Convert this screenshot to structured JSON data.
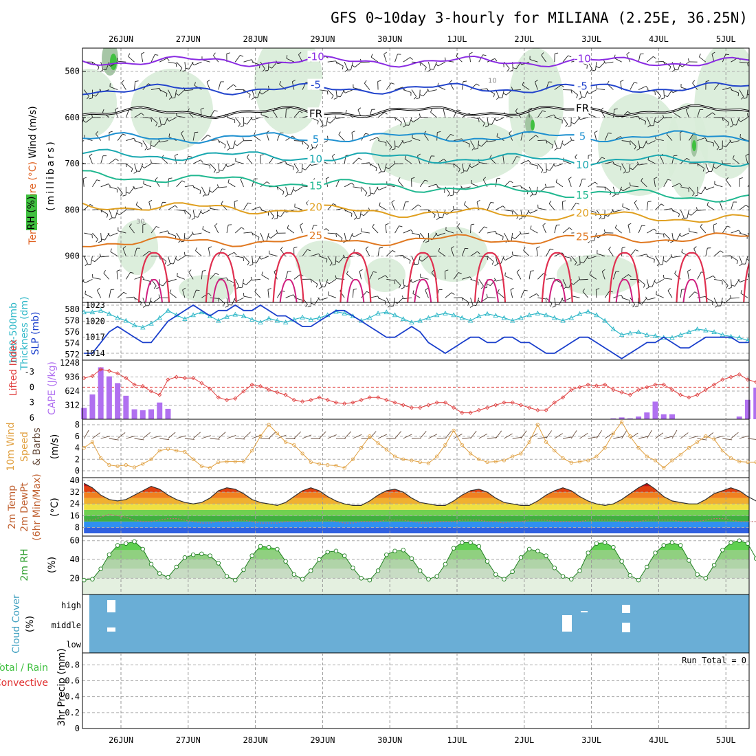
{
  "title": "GFS 0~10day 3-hourly for MILIANA (2.25E, 36.25N)",
  "x_axis": {
    "labels": [
      "26JUN",
      "27JUN",
      "28JUN",
      "29JUN",
      "30JUN",
      "1JUL",
      "2JUL",
      "3JUL",
      "4JUL",
      "5JUL"
    ]
  },
  "chart_data": [
    {
      "id": "upper-air",
      "type": "heatmap",
      "ylabels": [
        "Wind (m/s)",
        "Temperature (°C)",
        "RH (%)",
        "(millibars)"
      ],
      "yticks": [
        500,
        600,
        700,
        800,
        900
      ],
      "ylim": [
        1000,
        450
      ],
      "isotherms": [
        {
          "value": -10,
          "label": "-10",
          "color": "#8a2be2",
          "p_start": 478,
          "p_end": 480
        },
        {
          "value": -5,
          "label": "-5",
          "color": "#2244cc",
          "p_start": 540,
          "p_end": 535
        },
        {
          "value": 0,
          "label": "FR",
          "color": "#000000",
          "p_start": 590,
          "p_end": 585
        },
        {
          "value": 5,
          "label": "5",
          "color": "#1e90d0",
          "p_start": 645,
          "p_end": 640
        },
        {
          "value": 10,
          "label": "10",
          "color": "#1aa8b0",
          "p_start": 680,
          "p_end": 695
        },
        {
          "value": 15,
          "label": "15",
          "color": "#20b890",
          "p_start": 725,
          "p_end": 775
        },
        {
          "value": 20,
          "label": "20",
          "color": "#e0a020",
          "p_start": 790,
          "p_end": 820
        },
        {
          "value": 25,
          "label": "25",
          "color": "#e07820",
          "p_start": 870,
          "p_end": 860
        }
      ],
      "rh_labels": [
        "30",
        "10"
      ]
    },
    {
      "id": "slp-thickness",
      "type": "line",
      "ylabels": [
        "1000-500mb",
        "Thickness (dm)",
        "SLP (mb)"
      ],
      "left_ticks": [
        572,
        574,
        576,
        578,
        580
      ],
      "right_ticks": [
        1014,
        1017,
        1020,
        1023
      ],
      "series": [
        {
          "name": "SLP (mb)",
          "color": "#1a3fcc",
          "values": [
            1014,
            1014,
            1016,
            1018,
            1019,
            1018,
            1017,
            1016,
            1016,
            1018,
            1020,
            1021,
            1022,
            1023,
            1022,
            1021,
            1022,
            1022,
            1023,
            1022,
            1022,
            1023,
            1022,
            1021,
            1021,
            1020,
            1019,
            1019,
            1020,
            1021,
            1022,
            1022,
            1021,
            1020,
            1019,
            1018,
            1017,
            1017,
            1018,
            1019,
            1018,
            1016,
            1015,
            1014,
            1015,
            1016,
            1017,
            1017,
            1016,
            1016,
            1017,
            1017,
            1016,
            1016,
            1015,
            1014,
            1014,
            1015,
            1016,
            1017,
            1017,
            1016,
            1015,
            1014,
            1013,
            1014,
            1015,
            1016,
            1016,
            1017,
            1016,
            1015,
            1015,
            1016,
            1017,
            1017,
            1017,
            1017,
            1016,
            1016,
            1017,
            1017,
            1016,
            1015,
            1016,
            1016,
            1015,
            1014,
            1014,
            1015,
            1015,
            1016,
            1015,
            1014,
            1014,
            1015,
            1015,
            1015,
            1015,
            1016,
            1016
          ]
        },
        {
          "name": "1000-500mb Thickness (dm)",
          "color": "#30b8c8",
          "values": [
            579.5,
            579.5,
            579.8,
            579.2,
            578.5,
            578.0,
            577.2,
            576.8,
            577.5,
            578.5,
            579.8,
            579.0,
            578.3,
            579.0,
            579.5,
            578.8,
            578.0,
            578.7,
            579.1,
            578.8,
            578.2,
            577.7,
            578.4,
            578.0,
            577.7,
            578.2,
            578.6,
            578.2,
            578.5,
            579.0,
            579.6,
            579.3,
            578.8,
            578.0,
            578.5,
            579.3,
            579.5,
            579.0,
            578.3,
            577.7,
            578.0,
            578.5,
            579.0,
            579.3,
            579.0,
            578.5,
            578.0,
            578.8,
            579.2,
            578.9,
            578.5,
            578.0,
            578.5,
            579.0,
            579.3,
            579.0,
            578.5,
            578.0,
            578.5,
            579.2,
            579.6,
            579.0,
            578.0,
            576.5,
            575.5,
            575.8,
            576.0,
            575.5,
            575.3,
            575.0,
            575.0,
            575.5,
            576.0,
            576.5,
            576.3,
            576.0,
            575.5,
            575.2,
            575.0,
            574.5,
            574.0,
            574.5,
            575.0,
            575.2,
            575.0,
            574.5,
            574.8,
            575.2,
            575.5,
            575.4,
            575.0,
            575.3,
            575.5,
            575.0,
            574.5,
            574.0,
            574.8,
            575.4,
            575.8,
            575.5,
            575.0
          ]
        }
      ]
    },
    {
      "id": "instability",
      "type": "bar",
      "ylabels": [
        "Lifted Index",
        "CAPE (J/kg)"
      ],
      "left_ticks": [
        -3,
        0,
        3,
        6
      ],
      "right_ticks": [
        312,
        624,
        936,
        1248
      ],
      "series": [
        {
          "name": "CAPE (J/kg)",
          "color": "#b070f0",
          "values": [
            250,
            550,
            1150,
            950,
            800,
            520,
            220,
            200,
            220,
            370,
            230,
            0,
            0,
            0,
            0,
            0,
            0,
            0,
            0,
            0,
            0,
            0,
            0,
            0,
            0,
            0,
            0,
            0,
            0,
            0,
            0,
            0,
            0,
            0,
            0,
            0,
            0,
            0,
            0,
            0,
            0,
            0,
            0,
            0,
            0,
            0,
            0,
            0,
            0,
            0,
            0,
            0,
            0,
            0,
            0,
            0,
            0,
            0,
            0,
            0,
            0,
            0,
            0,
            20,
            40,
            20,
            60,
            150,
            390,
            110,
            110,
            0,
            0,
            0,
            0,
            0,
            0,
            0,
            60,
            430,
            700,
            450,
            480,
            230,
            80,
            80,
            100,
            470,
            200,
            60,
            190,
            70,
            0,
            0,
            0,
            0,
            0,
            0,
            0,
            0,
            0
          ]
        },
        {
          "name": "Lifted Index",
          "color": "#e04040",
          "values": [
            -1.8,
            -2.2,
            -3.5,
            -3.2,
            -2.7,
            -1.8,
            -0.5,
            -0.2,
            0.8,
            1.5,
            -1.5,
            -2.0,
            -1.8,
            -1.8,
            -0.8,
            0.3,
            2.0,
            2.5,
            2.2,
            0.8,
            -0.5,
            -0.2,
            0.5,
            1.0,
            1.5,
            2.5,
            2.8,
            2.5,
            2.0,
            2.5,
            3.0,
            3.2,
            3.0,
            2.5,
            2.0,
            2.0,
            2.5,
            3.0,
            3.5,
            4.0,
            4.0,
            3.5,
            3.0,
            3.0,
            4.0,
            5.0,
            5.0,
            4.5,
            4.0,
            3.5,
            3.0,
            3.0,
            3.5,
            4.0,
            4.5,
            4.5,
            3.0,
            2.0,
            0.5,
            0.0,
            -0.5,
            -0.3,
            -0.5,
            0.5,
            1.0,
            1.5,
            0.5,
            0.0,
            -0.5,
            -0.5,
            0.5,
            1.5,
            2.0,
            1.5,
            0.5,
            -0.5,
            -1.5,
            -2.0,
            -2.5,
            -1.5,
            -1.0,
            -0.5,
            0.0,
            0.8,
            1.5,
            2.0,
            1.5,
            0.5,
            -0.2,
            0.5,
            1.0,
            0.8,
            0.5,
            0.0,
            -0.5,
            -0.8,
            -0.3,
            0.3,
            0.5,
            1.0,
            1.2
          ]
        }
      ]
    },
    {
      "id": "wind10m",
      "type": "line",
      "ylabels": [
        "10m Wind",
        "Speed",
        "& Barbs",
        "(m/s)"
      ],
      "left_ticks": [
        0,
        2,
        4,
        6,
        8
      ],
      "series": [
        {
          "name": "10m Wind Speed",
          "color": "#e0a040",
          "values": [
            4.0,
            5.0,
            2.2,
            1.0,
            0.8,
            1.0,
            0.6,
            1.2,
            2.0,
            3.5,
            3.8,
            3.5,
            3.3,
            2.0,
            0.8,
            0.5,
            1.5,
            1.6,
            1.6,
            1.6,
            3.5,
            6.0,
            8.0,
            6.5,
            5.0,
            4.5,
            3.0,
            1.5,
            1.2,
            1.0,
            0.9,
            0.5,
            2.0,
            4.0,
            6.0,
            4.8,
            3.7,
            2.5,
            2.0,
            1.8,
            1.5,
            1.3,
            2.5,
            4.5,
            7.0,
            4.5,
            3.0,
            2.0,
            1.5,
            1.6,
            1.8,
            2.5,
            3.0,
            5.0,
            8.0,
            5.0,
            3.5,
            2.2,
            1.4,
            1.6,
            1.8,
            2.5,
            4.0,
            6.5,
            8.5,
            6.0,
            4.0,
            2.5,
            1.8,
            0.5,
            1.8,
            2.8,
            4.0,
            5.0,
            6.0,
            5.5,
            3.5,
            2.2,
            1.6,
            1.5,
            1.5,
            2.0,
            3.5,
            6.0,
            8.0,
            5.0,
            3.5,
            1.5,
            1.2,
            1.0,
            1.0,
            2.0,
            5.0,
            7.0,
            6.0,
            6.0,
            4.5,
            2.0,
            1.0,
            0.8,
            0.8
          ]
        }
      ]
    },
    {
      "id": "temperature",
      "type": "area",
      "ylabels": [
        "2m Temp",
        "2m DewPt",
        "(6hr Min/Max)",
        "(°C)"
      ],
      "left_ticks": [
        8,
        16,
        24,
        32,
        40
      ],
      "series": [
        {
          "name": "2m Temp",
          "color": "#303030",
          "values": [
            38,
            35,
            30,
            27,
            26,
            27,
            30,
            33,
            36,
            34,
            30,
            27,
            25,
            24,
            25,
            28,
            33,
            35,
            34,
            31,
            27,
            25,
            24,
            23,
            25,
            29,
            33,
            35,
            33,
            29,
            26,
            24,
            23,
            23,
            26,
            30,
            33,
            34,
            32,
            28,
            25,
            24,
            23,
            23,
            26,
            30,
            33,
            34,
            32,
            28,
            25,
            24,
            23,
            23,
            26,
            30,
            33,
            35,
            33,
            29,
            26,
            24,
            23,
            24,
            27,
            31,
            35,
            38,
            34,
            29,
            26,
            25,
            24,
            24,
            27,
            31,
            33,
            35,
            33,
            29,
            26,
            25,
            24,
            24,
            27,
            31,
            33,
            34,
            32,
            28,
            25,
            24,
            23,
            23,
            26,
            30,
            33,
            33,
            31,
            27,
            24,
            23,
            22
          ]
        },
        {
          "name": "2m DewPt",
          "color": "#c07070",
          "values": [
            13,
            13,
            15,
            17,
            16,
            15,
            13,
            12,
            12,
            13,
            14,
            14,
            13,
            12,
            11,
            11,
            12,
            12,
            13,
            13,
            12,
            11,
            11,
            11,
            12,
            12,
            12,
            13,
            13,
            13,
            12,
            11,
            11,
            12,
            12,
            12,
            13,
            13,
            13,
            12,
            11,
            11,
            12,
            12,
            12,
            13,
            13,
            13,
            12,
            12,
            11,
            12,
            12,
            13,
            13,
            13,
            12,
            12,
            12,
            12,
            13,
            13,
            13,
            13,
            12,
            12,
            12,
            13,
            13,
            13,
            13,
            12,
            12,
            12,
            13,
            14,
            14,
            13,
            12,
            12,
            12,
            13,
            13,
            13,
            13,
            12,
            12,
            12,
            13,
            13,
            13,
            13,
            12,
            12,
            12,
            13,
            13,
            14,
            13,
            13,
            13
          ]
        }
      ]
    },
    {
      "id": "rh2m",
      "type": "area",
      "ylabels": [
        "2m RH",
        "(%)"
      ],
      "left_ticks": [
        20,
        40,
        60
      ],
      "series": [
        {
          "name": "2m RH",
          "color": "#208020",
          "values": [
            18,
            19,
            30,
            45,
            55,
            57,
            59,
            51,
            35,
            25,
            21,
            32,
            42,
            45,
            46,
            44,
            36,
            22,
            18,
            29,
            44,
            54,
            53,
            51,
            38,
            24,
            19,
            28,
            40,
            48,
            49,
            44,
            31,
            20,
            18,
            28,
            45,
            49,
            50,
            41,
            28,
            19,
            22,
            35,
            52,
            58,
            58,
            54,
            38,
            24,
            19,
            27,
            42,
            51,
            49,
            44,
            31,
            22,
            19,
            28,
            47,
            57,
            58,
            53,
            38,
            23,
            18,
            32,
            47,
            55,
            58,
            55,
            39,
            24,
            20,
            34,
            50,
            58,
            60,
            57,
            41,
            26,
            19,
            32,
            48,
            56,
            59,
            55,
            39,
            24,
            19,
            30,
            45,
            56,
            57,
            53,
            38,
            22,
            19
          ]
        }
      ]
    },
    {
      "id": "cloud-cover",
      "type": "heatmap",
      "ylabels": [
        "Cloud Cover",
        "(%)"
      ],
      "levels": [
        "high",
        "middle",
        "low"
      ]
    },
    {
      "id": "precip",
      "type": "bar",
      "ylabels": [
        "Total / Rain",
        "Convective",
        "3hr Precip (mm)"
      ],
      "left_ticks": [
        0,
        0.2,
        0.4,
        0.6,
        0.8
      ],
      "annotation": "Run Total = 0",
      "series": [
        {
          "name": "Total / Rain",
          "color": "#40c040",
          "values": []
        },
        {
          "name": "Convective",
          "color": "#e03030",
          "values": []
        }
      ]
    }
  ]
}
